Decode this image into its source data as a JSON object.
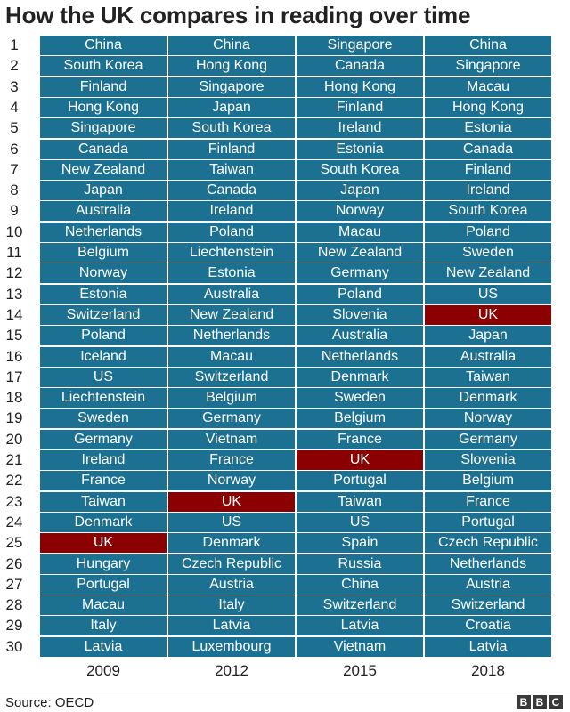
{
  "title": "How the UK compares in reading over time",
  "source": "Source: OECD",
  "logo_text": "BBC",
  "colors": {
    "cell": "#1c7091",
    "highlight": "#8b0000"
  },
  "chart_data": {
    "type": "table",
    "title": "How the UK compares in reading over time",
    "ranks": [
      "1",
      "2",
      "3",
      "4",
      "5",
      "6",
      "7",
      "8",
      "9",
      "10",
      "11",
      "12",
      "13",
      "14",
      "15",
      "16",
      "17",
      "18",
      "19",
      "20",
      "21",
      "22",
      "23",
      "24",
      "25",
      "26",
      "27",
      "28",
      "29",
      "30"
    ],
    "highlight": "UK",
    "columns": [
      {
        "year": "2009",
        "countries": [
          "China",
          "South Korea",
          "Finland",
          "Hong Kong",
          "Singapore",
          "Canada",
          "New Zealand",
          "Japan",
          "Australia",
          "Netherlands",
          "Belgium",
          "Norway",
          "Estonia",
          "Switzerland",
          "Poland",
          "Iceland",
          "US",
          "Liechtenstein",
          "Sweden",
          "Germany",
          "Ireland",
          "France",
          "Taiwan",
          "Denmark",
          "UK",
          "Hungary",
          "Portugal",
          "Macau",
          "Italy",
          "Latvia"
        ]
      },
      {
        "year": "2012",
        "countries": [
          "China",
          "Hong Kong",
          "Singapore",
          "Japan",
          "South Korea",
          "Finland",
          "Taiwan",
          "Canada",
          "Ireland",
          "Poland",
          "Liechtenstein",
          "Estonia",
          "Australia",
          "New Zealand",
          "Netherlands",
          "Macau",
          "Switzerland",
          "Belgium",
          "Germany",
          "Vietnam",
          "France",
          "Norway",
          "UK",
          "US",
          "Denmark",
          "Czech Republic",
          "Austria",
          "Italy",
          "Latvia",
          "Luxembourg"
        ]
      },
      {
        "year": "2015",
        "countries": [
          "Singapore",
          "Canada",
          "Hong Kong",
          "Finland",
          "Ireland",
          "Estonia",
          "South Korea",
          "Japan",
          "Norway",
          "Macau",
          "New Zealand",
          "Germany",
          "Poland",
          "Slovenia",
          "Australia",
          "Netherlands",
          "Denmark",
          "Sweden",
          "Belgium",
          "France",
          "UK",
          "Portugal",
          "Taiwan",
          "US",
          "Spain",
          "Russia",
          "China",
          "Switzerland",
          "Latvia",
          "Vietnam"
        ]
      },
      {
        "year": "2018",
        "countries": [
          "China",
          "Singapore",
          "Macau",
          "Hong Kong",
          "Estonia",
          "Canada",
          "Finland",
          "Ireland",
          "South Korea",
          "Poland",
          "Sweden",
          "New Zealand",
          "US",
          "UK",
          "Japan",
          "Australia",
          "Taiwan",
          "Denmark",
          "Norway",
          "Germany",
          "Slovenia",
          "Belgium",
          "France",
          "Portugal",
          "Czech Republic",
          "Netherlands",
          "Austria",
          "Switzerland",
          "Croatia",
          "Latvia"
        ]
      }
    ]
  }
}
